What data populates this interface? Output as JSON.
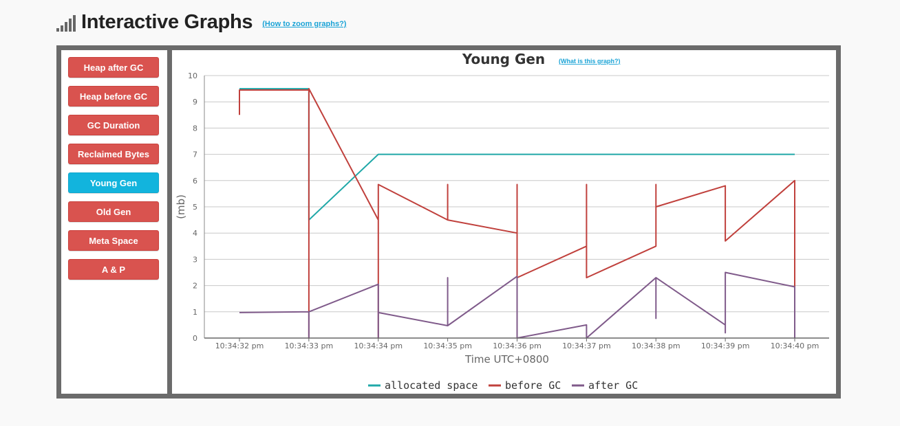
{
  "header": {
    "title": "Interactive Graphs",
    "zoom_link": "(How to zoom graphs?)"
  },
  "sidebar": {
    "items": [
      {
        "label": "Heap after GC",
        "active": false
      },
      {
        "label": "Heap before GC",
        "active": false
      },
      {
        "label": "GC Duration",
        "active": false
      },
      {
        "label": "Reclaimed Bytes",
        "active": false
      },
      {
        "label": "Young Gen",
        "active": true
      },
      {
        "label": "Old Gen",
        "active": false
      },
      {
        "label": "Meta Space",
        "active": false
      },
      {
        "label": "A & P",
        "active": false
      }
    ]
  },
  "graph": {
    "title": "Young Gen",
    "help_link": "(What is this graph?)"
  },
  "chart_data": {
    "type": "line",
    "title": "Young Gen",
    "xlabel": "Time UTC+0800",
    "ylabel": "(mb)",
    "x_ticks": [
      "10:34:32 pm",
      "10:34:33 pm",
      "10:34:34 pm",
      "10:34:35 pm",
      "10:34:36 pm",
      "10:34:37 pm",
      "10:34:38 pm",
      "10:34:39 pm",
      "10:34:40 pm"
    ],
    "y_ticks": [
      0,
      1,
      2,
      3,
      4,
      5,
      6,
      7,
      8,
      9,
      10
    ],
    "ylim": [
      0,
      10
    ],
    "grid": true,
    "legend": "bottom",
    "series": [
      {
        "name": "allocated space",
        "color": "#20a8a8",
        "points": [
          [
            0.0,
            9.5
          ],
          [
            1.0,
            9.5
          ],
          [
            1.0,
            4.5
          ],
          [
            2.0,
            7.0
          ],
          [
            8.0,
            7.0
          ]
        ]
      },
      {
        "name": "before GC",
        "color": "#c0403c",
        "points": [
          [
            0.0,
            8.5
          ],
          [
            0.0,
            9.45
          ],
          [
            1.0,
            9.45
          ],
          [
            1.0,
            0.0
          ],
          [
            1.0,
            9.5
          ],
          [
            2.0,
            4.5
          ],
          [
            2.0,
            0.0
          ],
          [
            2.0,
            5.85
          ],
          [
            3.0,
            4.5
          ],
          [
            3.0,
            5.85
          ],
          [
            3.0,
            4.5
          ],
          [
            4.0,
            4.0
          ],
          [
            4.0,
            5.85
          ],
          [
            4.0,
            2.3
          ],
          [
            5.0,
            3.5
          ],
          [
            5.0,
            5.85
          ],
          [
            5.0,
            2.3
          ],
          [
            6.0,
            3.5
          ],
          [
            6.0,
            5.85
          ],
          [
            6.0,
            5.0
          ],
          [
            7.0,
            5.8
          ],
          [
            7.0,
            3.7
          ],
          [
            8.0,
            6.0
          ],
          [
            8.0,
            0.0
          ]
        ]
      },
      {
        "name": "after GC",
        "color": "#7f5a8a",
        "points": [
          [
            0.0,
            0.97
          ],
          [
            1.0,
            1.0
          ],
          [
            1.0,
            0.0
          ],
          [
            1.0,
            1.0
          ],
          [
            2.0,
            2.05
          ],
          [
            2.0,
            0.0
          ],
          [
            2.0,
            0.97
          ],
          [
            3.0,
            0.47
          ],
          [
            3.0,
            2.3
          ],
          [
            3.0,
            0.47
          ],
          [
            4.0,
            2.35
          ],
          [
            4.0,
            0.0
          ],
          [
            5.0,
            0.5
          ],
          [
            5.0,
            0.0
          ],
          [
            6.0,
            2.3
          ],
          [
            6.0,
            0.75
          ],
          [
            6.0,
            2.3
          ],
          [
            7.0,
            0.5
          ],
          [
            7.0,
            0.2
          ],
          [
            7.0,
            2.5
          ],
          [
            8.0,
            1.95
          ],
          [
            8.0,
            0.0
          ]
        ]
      }
    ]
  }
}
